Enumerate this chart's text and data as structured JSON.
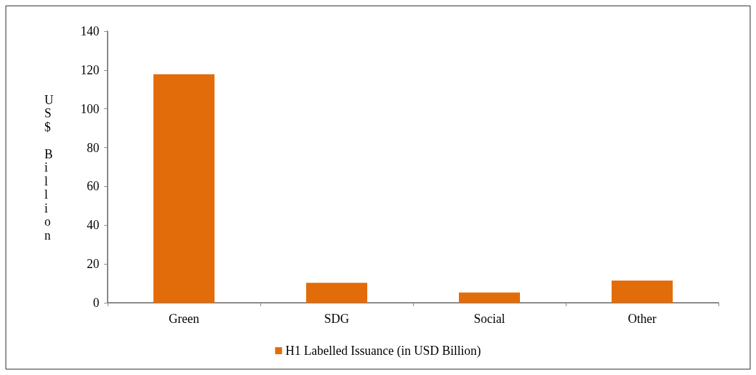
{
  "chart_data": {
    "type": "bar",
    "ylabel": "US$ Billion",
    "categories": [
      "Green",
      "SDG",
      "Social",
      "Other"
    ],
    "series": [
      {
        "name": "H1 Labelled Issuance (in USD Billion)",
        "color": "#e36c0a",
        "values": [
          117.8,
          10.3,
          5.3,
          11.5
        ]
      }
    ],
    "ylim": [
      0,
      140
    ],
    "yticks": [
      0,
      20,
      40,
      60,
      80,
      100,
      120,
      140
    ],
    "grid": false,
    "legend": "bottom"
  }
}
